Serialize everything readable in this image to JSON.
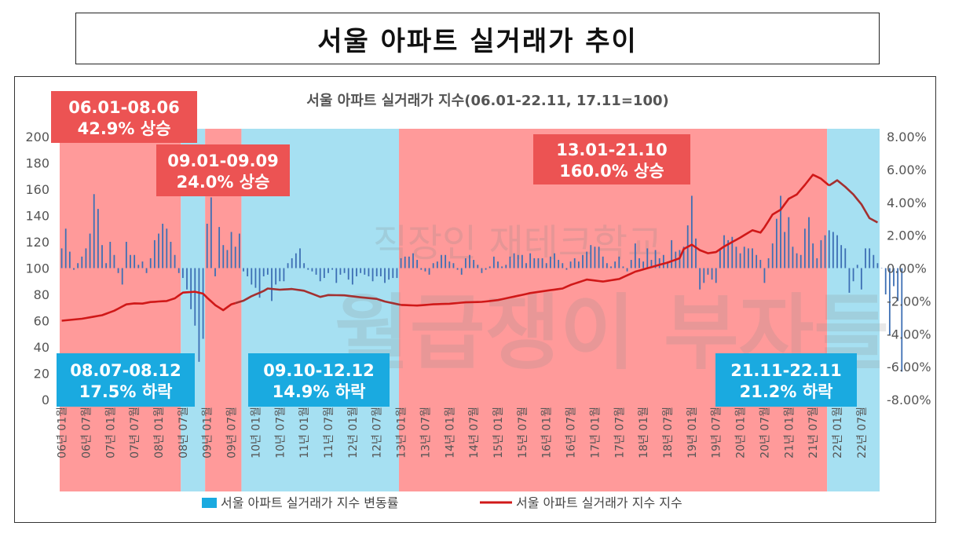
{
  "page_title": "서울 아파트 실거래가 추이",
  "chart_data": {
    "type": "bar+line",
    "title": "서울 아파트 실거래가 지수(06.01-22.11, 17.11=100)",
    "left_axis": {
      "min": 0,
      "max": 200,
      "ticks": [
        "0",
        "20",
        "40",
        "60",
        "80",
        "100",
        "120",
        "140",
        "160",
        "180",
        "200"
      ]
    },
    "right_axis": {
      "min": -8,
      "max": 8,
      "ticks": [
        "-8.00%",
        "-6.00%",
        "-4.00%",
        "-2.00%",
        "0.00%",
        "2.00%",
        "4.00%",
        "6.00%",
        "8.00%"
      ]
    },
    "x_tick_labels": [
      "06년 01월",
      "06년 07월",
      "07년 01월",
      "07년 07월",
      "08년 01월",
      "08년 07월",
      "09년 01월",
      "09년 07월",
      "10년 01월",
      "10년 07월",
      "11년 01월",
      "11년 07월",
      "12년 01월",
      "12년 07월",
      "13년 01월",
      "13년 07월",
      "14년 01월",
      "14년 07월",
      "15년 01월",
      "15년 07월",
      "16년 01월",
      "16년 07월",
      "17년 01월",
      "17년 07월",
      "18년 01월",
      "18년 07월",
      "19년 01월",
      "19년 07월",
      "20년 01월",
      "20년 07월",
      "21년 01월",
      "21년 07월",
      "22년 01월",
      "22년 07월"
    ],
    "period_bands": [
      {
        "start": 0,
        "end": 29,
        "kind": "up"
      },
      {
        "start": 30,
        "end": 35,
        "kind": "down"
      },
      {
        "start": 36,
        "end": 44,
        "kind": "up"
      },
      {
        "start": 45,
        "end": 83,
        "kind": "down"
      },
      {
        "start": 84,
        "end": 189,
        "kind": "up"
      },
      {
        "start": 190,
        "end": 202,
        "kind": "down"
      }
    ],
    "annotations": [
      {
        "line1": "06.01-08.06",
        "line2": "42.9% 상승",
        "kind": "up"
      },
      {
        "line1": "09.01-09.09",
        "line2": "24.0% 상승",
        "kind": "up"
      },
      {
        "line1": "13.01-21.10",
        "line2": "160.0% 상승",
        "kind": "up"
      },
      {
        "line1": "08.07-08.12",
        "line2": "17.5% 하락",
        "kind": "down"
      },
      {
        "line1": "09.10-12.12",
        "line2": "14.9% 하락",
        "kind": "down"
      },
      {
        "line1": "21.11-22.11",
        "line2": "21.2% 하락",
        "kind": "down"
      }
    ],
    "index_anchors": [
      [
        0,
        60.0
      ],
      [
        5,
        61.5
      ],
      [
        10,
        64.2
      ],
      [
        13,
        67.6
      ],
      [
        16,
        72.4
      ],
      [
        18,
        73.2
      ],
      [
        20,
        73.0
      ],
      [
        22,
        74.2
      ],
      [
        24,
        74.6
      ],
      [
        26,
        75.0
      ],
      [
        28,
        77.0
      ],
      [
        30,
        81.4
      ],
      [
        33,
        82.0
      ],
      [
        35,
        80.6
      ],
      [
        36,
        77.5
      ],
      [
        38,
        71.9
      ],
      [
        40,
        68.0
      ],
      [
        42,
        72.5
      ],
      [
        45,
        75.2
      ],
      [
        47,
        78.6
      ],
      [
        50,
        82.6
      ],
      [
        51,
        84.5
      ],
      [
        54,
        83.6
      ],
      [
        57,
        84.1
      ],
      [
        60,
        82.8
      ],
      [
        64,
        78.1
      ],
      [
        66,
        79.5
      ],
      [
        70,
        79.3
      ],
      [
        74,
        77.8
      ],
      [
        78,
        76.6
      ],
      [
        80,
        74.6
      ],
      [
        84,
        72.0
      ],
      [
        88,
        71.5
      ],
      [
        92,
        72.5
      ],
      [
        96,
        72.9
      ],
      [
        100,
        74.0
      ],
      [
        104,
        74.3
      ],
      [
        108,
        75.7
      ],
      [
        112,
        78.3
      ],
      [
        116,
        81.0
      ],
      [
        120,
        82.8
      ],
      [
        124,
        84.5
      ],
      [
        126,
        87.2
      ],
      [
        130,
        91.3
      ],
      [
        134,
        89.8
      ],
      [
        138,
        91.7
      ],
      [
        142,
        97.3
      ],
      [
        146,
        100.8
      ],
      [
        150,
        104.2
      ],
      [
        153,
        107.5
      ],
      [
        154,
        114.5
      ],
      [
        156,
        117.8
      ],
      [
        158,
        113.7
      ],
      [
        160,
        111.3
      ],
      [
        162,
        112.2
      ],
      [
        164,
        116.4
      ],
      [
        168,
        123.2
      ],
      [
        171,
        128.8
      ],
      [
        173,
        127.0
      ],
      [
        174,
        131.0
      ],
      [
        176,
        140.8
      ],
      [
        178,
        144.4
      ],
      [
        180,
        152.7
      ],
      [
        182,
        156.0
      ],
      [
        184,
        163.3
      ],
      [
        186,
        171.0
      ],
      [
        188,
        168.0
      ],
      [
        190,
        162.8
      ],
      [
        192,
        166.8
      ],
      [
        194,
        161.8
      ],
      [
        196,
        156.0
      ],
      [
        198,
        148.5
      ],
      [
        200,
        138.0
      ],
      [
        202,
        134.7
      ]
    ],
    "pct_changes": [
      1.2,
      2.4,
      1.0,
      -0.1,
      0.3,
      0.7,
      1.2,
      2.1,
      4.5,
      3.6,
      1.4,
      0.3,
      1.6,
      0.8,
      -0.3,
      -1.0,
      1.6,
      0.8,
      0.8,
      0.2,
      0.4,
      -0.3,
      0.6,
      1.7,
      2.1,
      2.7,
      2.4,
      1.6,
      0.8,
      -0.3,
      -0.6,
      -1.3,
      -2.5,
      -3.5,
      -5.7,
      -4.3,
      2.7,
      4.3,
      -0.5,
      2.5,
      1.4,
      1.1,
      2.2,
      1.3,
      2.1,
      -0.2,
      -0.5,
      -1.0,
      -1.2,
      -1.8,
      -0.5,
      -0.4,
      -2.0,
      -1.0,
      -0.8,
      -0.8,
      0.3,
      0.6,
      0.9,
      1.2,
      0.3,
      -0.1,
      -0.2,
      -0.4,
      -0.8,
      -0.6,
      -0.3,
      -0.1,
      -0.9,
      -0.4,
      -0.3,
      -0.7,
      -1.0,
      -0.5,
      -0.3,
      -0.4,
      -0.5,
      -0.8,
      -0.5,
      -0.5,
      -0.9,
      -0.7,
      -0.6,
      -0.6,
      0.6,
      0.7,
      0.7,
      0.9,
      0.5,
      -0.1,
      -0.2,
      -0.4,
      0.3,
      0.4,
      0.8,
      0.8,
      0.4,
      0.3,
      -0.1,
      -0.4,
      0.6,
      0.8,
      0.5,
      0.2,
      -0.3,
      -0.1,
      0.1,
      0.7,
      0.4,
      0.1,
      0.2,
      0.7,
      0.9,
      0.8,
      0.8,
      0.3,
      0.9,
      0.6,
      0.6,
      0.6,
      0.3,
      0.7,
      0.9,
      0.5,
      0.3,
      -0.1,
      0.4,
      0.6,
      0.4,
      0.8,
      1.0,
      1.4,
      1.3,
      1.3,
      0.7,
      0.3,
      0.1,
      0.4,
      0.7,
      0.1,
      -0.2,
      0.5,
      1.5,
      0.6,
      0.4,
      1.2,
      0.5,
      1.1,
      0.6,
      0.8,
      0.4,
      1.7,
      1.0,
      1.1,
      1.3,
      2.6,
      4.4,
      1.8,
      -1.3,
      -0.9,
      -0.4,
      -0.7,
      -0.9,
      1.1,
      2.0,
      1.7,
      1.9,
      1.3,
      0.9,
      1.3,
      1.2,
      1.2,
      0.8,
      0.5,
      -0.9,
      0.6,
      1.5,
      3.0,
      4.4,
      2.2,
      3.1,
      1.3,
      0.9,
      0.8,
      2.4,
      3.1,
      1.5,
      0.6,
      1.7,
      2.0,
      2.3,
      2.2,
      2.0,
      1.4,
      1.2,
      -1.5,
      -0.8,
      0.2,
      -1.3,
      1.2,
      1.2,
      0.8,
      0.3,
      0.0,
      -1.6,
      -4.1,
      -1.1,
      -2.0,
      -6.3
    ]
  },
  "legend": {
    "bar_label": "서울 아파트 실거래가 지수 변동률",
    "line_label": "서울 아파트 실거래가 지수 지수"
  },
  "watermark": {
    "line1": "직장인 재테크학교",
    "line2": "월급쟁이 부자들"
  },
  "colors": {
    "up_band": "#ff9a9a",
    "down_band": "#a6e0f2",
    "up_label_bg": "#ec5353",
    "down_label_bg": "#1aaae0",
    "bar": "#3d6fb4",
    "line": "#d01818",
    "line_dark": "#a33030"
  }
}
